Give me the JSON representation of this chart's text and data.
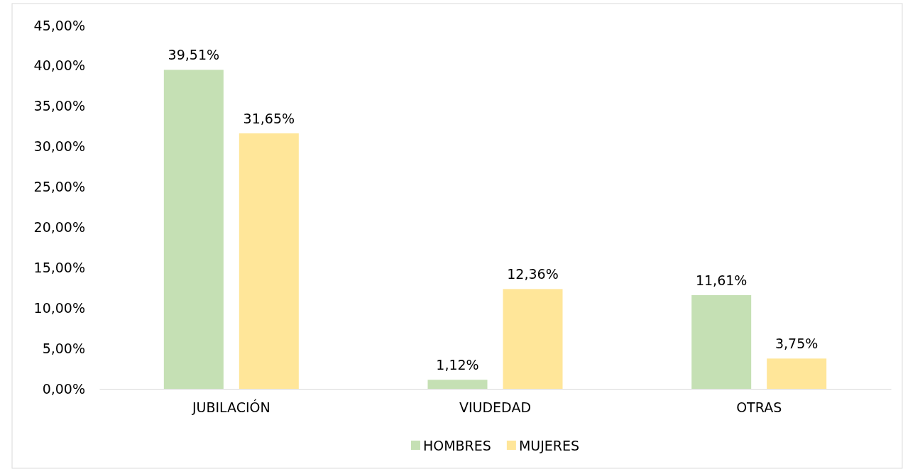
{
  "chart_data": {
    "type": "bar",
    "categories": [
      "JUBILACIÓN",
      "VIUDEDAD",
      "OTRAS"
    ],
    "series": [
      {
        "name": "HOMBRES",
        "color": "#c5e0b4",
        "values": [
          39.51,
          1.12,
          11.61
        ],
        "value_labels": [
          "39,51%",
          "1,12%",
          "11,61%"
        ]
      },
      {
        "name": "MUJERES",
        "color": "#ffe699",
        "values": [
          31.65,
          12.36,
          3.75
        ],
        "value_labels": [
          "31,65%",
          "12,36%",
          "3,75%"
        ]
      }
    ],
    "ylim": [
      0,
      45
    ],
    "yticks": [
      {
        "value": 0,
        "label": "0,00%"
      },
      {
        "value": 5,
        "label": "5,00%"
      },
      {
        "value": 10,
        "label": "10,00%"
      },
      {
        "value": 15,
        "label": "15,00%"
      },
      {
        "value": 20,
        "label": "20,00%"
      },
      {
        "value": 25,
        "label": "25,00%"
      },
      {
        "value": 30,
        "label": "30,00%"
      },
      {
        "value": 35,
        "label": "35,00%"
      },
      {
        "value": 40,
        "label": "40,00%"
      },
      {
        "value": 45,
        "label": "45,00%"
      }
    ],
    "grid": false,
    "legend": "bottom"
  }
}
